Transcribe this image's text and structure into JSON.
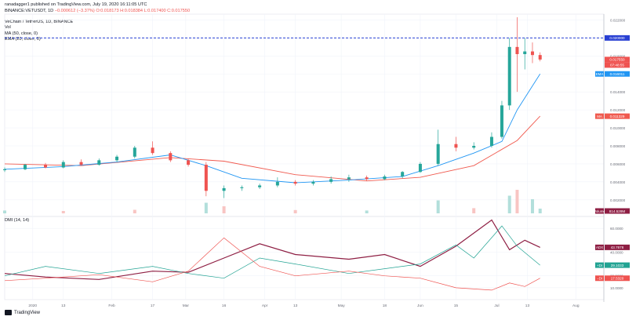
{
  "header": {
    "publish_line": "ranadagger1 published on TradingView.com, July 19, 2020 16:11:05 UTC",
    "symbol_line_prefix": "BINANCE:VETUSDT, 1D",
    "change_text": "−0.000612 (−3.37%)",
    "ohlc_text": "O:0.018173 H:0.018384 L:0.017400 C:0.017550",
    "title_line": "VeChain / TetherUS, 1D, BINANCE",
    "vol_label": "Vol",
    "ma_label": "MA (50, close, 0)",
    "ema_label": "EMA (20, close, 0)",
    "dmi_label": "DMI (14, 14)"
  },
  "footer": {
    "brand": "TradingView"
  },
  "colors": {
    "up": "#26a69a",
    "down": "#ef5350",
    "ema": "#2196f3",
    "ma": "#f05a4f",
    "adx": "#8e1e43",
    "plus_di": "#22a393",
    "minus_di": "#ef5350",
    "resistance": "#2940d3",
    "vol_up": "#b2dfdb",
    "vol_down": "#f8c5c3"
  },
  "chart_data": [
    {
      "type": "candlestick",
      "title": "VeChain / TetherUS, 1D, BINANCE",
      "y_axis_ticks": [
        "0.022000",
        "0.020000",
        "0.018000",
        "0.016000",
        "0.014000",
        "0.012000",
        "0.010000",
        "0.008000",
        "0.006000",
        "0.004000",
        "0.002000"
      ],
      "ylim": [
        0.0005,
        0.0223
      ],
      "x_axis_ticks": [
        {
          "label": "2020",
          "date": "2020-01-01"
        },
        {
          "label": "13",
          "date": "2020-01-13"
        },
        {
          "label": "Feb",
          "date": "2020-02-01"
        },
        {
          "label": "17",
          "date": "2020-02-17"
        },
        {
          "label": "Mar",
          "date": "2020-03-01"
        },
        {
          "label": "16",
          "date": "2020-03-16"
        },
        {
          "label": "Apr",
          "date": "2020-04-01"
        },
        {
          "label": "13",
          "date": "2020-04-13"
        },
        {
          "label": "May",
          "date": "2020-05-01"
        },
        {
          "label": "18",
          "date": "2020-05-18"
        },
        {
          "label": "Jun",
          "date": "2020-06-01"
        },
        {
          "label": "15",
          "date": "2020-06-15"
        },
        {
          "label": "Jul",
          "date": "2020-07-01"
        },
        {
          "label": "13",
          "date": "2020-07-13"
        },
        {
          "label": "Aug",
          "date": "2020-08-01"
        }
      ],
      "xlim": [
        "2019-12-21",
        "2020-08-12"
      ],
      "resistance_level": 0.02,
      "price_labels": {
        "resistance": "0.020000",
        "last": "0.017550",
        "countdown": "07:48:55",
        "ema_value": "0.016011",
        "ma_value": "0.011329",
        "volume_value": "814.528M"
      },
      "series_labels": {
        "ema": "EMA",
        "ma": "MA",
        "volume": "Volume"
      },
      "candles": [
        {
          "date": "2019-12-21",
          "o": 0.0053,
          "h": 0.0056,
          "l": 0.0051,
          "c": 0.0054
        },
        {
          "date": "2019-12-29",
          "o": 0.0054,
          "h": 0.006,
          "l": 0.0053,
          "c": 0.0059
        },
        {
          "date": "2020-01-06",
          "o": 0.0059,
          "h": 0.0061,
          "l": 0.0055,
          "c": 0.0056
        },
        {
          "date": "2020-01-13",
          "o": 0.0056,
          "h": 0.0064,
          "l": 0.0055,
          "c": 0.0062
        },
        {
          "date": "2020-01-20",
          "o": 0.0062,
          "h": 0.0065,
          "l": 0.0058,
          "c": 0.0059
        },
        {
          "date": "2020-01-27",
          "o": 0.0059,
          "h": 0.0066,
          "l": 0.0058,
          "c": 0.0064
        },
        {
          "date": "2020-02-03",
          "o": 0.0064,
          "h": 0.007,
          "l": 0.0062,
          "c": 0.0068
        },
        {
          "date": "2020-02-10",
          "o": 0.0068,
          "h": 0.008,
          "l": 0.0066,
          "c": 0.0078
        },
        {
          "date": "2020-02-17",
          "o": 0.0078,
          "h": 0.0085,
          "l": 0.007,
          "c": 0.0072
        },
        {
          "date": "2020-02-24",
          "o": 0.0072,
          "h": 0.0074,
          "l": 0.0062,
          "c": 0.0064
        },
        {
          "date": "2020-03-02",
          "o": 0.0064,
          "h": 0.0066,
          "l": 0.0057,
          "c": 0.0059
        },
        {
          "date": "2020-03-09",
          "o": 0.0059,
          "h": 0.0062,
          "l": 0.0024,
          "c": 0.003
        },
        {
          "date": "2020-03-16",
          "o": 0.003,
          "h": 0.0036,
          "l": 0.0022,
          "c": 0.0033
        },
        {
          "date": "2020-03-23",
          "o": 0.0033,
          "h": 0.0036,
          "l": 0.003,
          "c": 0.0034
        },
        {
          "date": "2020-03-30",
          "o": 0.0034,
          "h": 0.0038,
          "l": 0.0032,
          "c": 0.0036
        },
        {
          "date": "2020-04-06",
          "o": 0.0036,
          "h": 0.0045,
          "l": 0.0034,
          "c": 0.004
        },
        {
          "date": "2020-04-13",
          "o": 0.004,
          "h": 0.0042,
          "l": 0.0036,
          "c": 0.0038
        },
        {
          "date": "2020-04-20",
          "o": 0.0038,
          "h": 0.0042,
          "l": 0.0036,
          "c": 0.004
        },
        {
          "date": "2020-04-27",
          "o": 0.004,
          "h": 0.0046,
          "l": 0.0038,
          "c": 0.0043
        },
        {
          "date": "2020-05-04",
          "o": 0.0043,
          "h": 0.0048,
          "l": 0.004,
          "c": 0.0045
        },
        {
          "date": "2020-05-11",
          "o": 0.0045,
          "h": 0.0047,
          "l": 0.0041,
          "c": 0.0043
        },
        {
          "date": "2020-05-18",
          "o": 0.0043,
          "h": 0.0048,
          "l": 0.0042,
          "c": 0.0046
        },
        {
          "date": "2020-05-25",
          "o": 0.0046,
          "h": 0.0052,
          "l": 0.0044,
          "c": 0.0051
        },
        {
          "date": "2020-06-01",
          "o": 0.0051,
          "h": 0.0062,
          "l": 0.005,
          "c": 0.006
        },
        {
          "date": "2020-06-08",
          "o": 0.006,
          "h": 0.0098,
          "l": 0.0058,
          "c": 0.0082
        },
        {
          "date": "2020-06-15",
          "o": 0.0082,
          "h": 0.009,
          "l": 0.0074,
          "c": 0.0078
        },
        {
          "date": "2020-06-22",
          "o": 0.0078,
          "h": 0.0084,
          "l": 0.0076,
          "c": 0.008
        },
        {
          "date": "2020-06-29",
          "o": 0.008,
          "h": 0.0095,
          "l": 0.0078,
          "c": 0.009
        },
        {
          "date": "2020-07-03",
          "o": 0.009,
          "h": 0.013,
          "l": 0.0088,
          "c": 0.0125
        },
        {
          "date": "2020-07-06",
          "o": 0.0125,
          "h": 0.02,
          "l": 0.012,
          "c": 0.019
        },
        {
          "date": "2020-07-09",
          "o": 0.019,
          "h": 0.0223,
          "l": 0.014,
          "c": 0.0182
        },
        {
          "date": "2020-07-12",
          "o": 0.0182,
          "h": 0.02,
          "l": 0.0165,
          "c": 0.0185
        },
        {
          "date": "2020-07-15",
          "o": 0.0185,
          "h": 0.0195,
          "l": 0.0172,
          "c": 0.0181
        },
        {
          "date": "2020-07-18",
          "o": 0.0181,
          "h": 0.0184,
          "l": 0.0174,
          "c": 0.0176
        }
      ],
      "ema20": [
        {
          "date": "2019-12-21",
          "v": 0.0054
        },
        {
          "date": "2020-01-13",
          "v": 0.0057
        },
        {
          "date": "2020-02-03",
          "v": 0.0062
        },
        {
          "date": "2020-02-24",
          "v": 0.007
        },
        {
          "date": "2020-03-09",
          "v": 0.0058
        },
        {
          "date": "2020-03-23",
          "v": 0.0044
        },
        {
          "date": "2020-04-13",
          "v": 0.0039
        },
        {
          "date": "2020-05-04",
          "v": 0.0042
        },
        {
          "date": "2020-05-25",
          "v": 0.0046
        },
        {
          "date": "2020-06-08",
          "v": 0.0058
        },
        {
          "date": "2020-06-22",
          "v": 0.0072
        },
        {
          "date": "2020-07-03",
          "v": 0.0085
        },
        {
          "date": "2020-07-09",
          "v": 0.012
        },
        {
          "date": "2020-07-18",
          "v": 0.016
        }
      ],
      "ma50": [
        {
          "date": "2019-12-21",
          "v": 0.006
        },
        {
          "date": "2020-01-20",
          "v": 0.0058
        },
        {
          "date": "2020-02-24",
          "v": 0.0067
        },
        {
          "date": "2020-03-16",
          "v": 0.0063
        },
        {
          "date": "2020-04-13",
          "v": 0.0048
        },
        {
          "date": "2020-05-11",
          "v": 0.0041
        },
        {
          "date": "2020-06-01",
          "v": 0.0045
        },
        {
          "date": "2020-06-22",
          "v": 0.0058
        },
        {
          "date": "2020-07-09",
          "v": 0.0086
        },
        {
          "date": "2020-07-18",
          "v": 0.0113
        }
      ],
      "volume_relative": [
        {
          "date": "2019-12-21",
          "v": 0.12
        },
        {
          "date": "2020-01-13",
          "v": 0.1
        },
        {
          "date": "2020-02-10",
          "v": 0.15
        },
        {
          "date": "2020-03-09",
          "v": 0.45
        },
        {
          "date": "2020-03-16",
          "v": 0.3
        },
        {
          "date": "2020-04-13",
          "v": 0.14
        },
        {
          "date": "2020-05-11",
          "v": 0.12
        },
        {
          "date": "2020-06-08",
          "v": 0.55
        },
        {
          "date": "2020-06-22",
          "v": 0.22
        },
        {
          "date": "2020-07-06",
          "v": 0.75
        },
        {
          "date": "2020-07-09",
          "v": 1.0
        },
        {
          "date": "2020-07-15",
          "v": 0.6
        },
        {
          "date": "2020-07-18",
          "v": 0.2
        }
      ]
    },
    {
      "type": "line",
      "title": "DMI (14, 14)",
      "y_axis_ticks": [
        "60.0000",
        "40.0000",
        "20.0000",
        "10.0000"
      ],
      "ylim": [
        0,
        70
      ],
      "value_labels": {
        "adx": "43.7678",
        "plus_di": "29.1033",
        "minus_di": "17.5320"
      },
      "series_labels": {
        "adx": "ADX",
        "plus_di": "+DI",
        "minus_di": "−DI"
      },
      "series": [
        {
          "key": "adx",
          "values": [
            {
              "date": "2019-12-21",
              "v": 22
            },
            {
              "date": "2020-01-06",
              "v": 19
            },
            {
              "date": "2020-01-27",
              "v": 17
            },
            {
              "date": "2020-02-17",
              "v": 24
            },
            {
              "date": "2020-03-02",
              "v": 23
            },
            {
              "date": "2020-03-16",
              "v": 35
            },
            {
              "date": "2020-03-30",
              "v": 47
            },
            {
              "date": "2020-04-13",
              "v": 38
            },
            {
              "date": "2020-05-04",
              "v": 34
            },
            {
              "date": "2020-05-18",
              "v": 38
            },
            {
              "date": "2020-06-01",
              "v": 28
            },
            {
              "date": "2020-06-15",
              "v": 45
            },
            {
              "date": "2020-06-29",
              "v": 67
            },
            {
              "date": "2020-07-06",
              "v": 42
            },
            {
              "date": "2020-07-12",
              "v": 50
            },
            {
              "date": "2020-07-18",
              "v": 44
            }
          ]
        },
        {
          "key": "plus_di",
          "values": [
            {
              "date": "2019-12-21",
              "v": 20
            },
            {
              "date": "2020-01-06",
              "v": 28
            },
            {
              "date": "2020-01-27",
              "v": 22
            },
            {
              "date": "2020-02-17",
              "v": 28
            },
            {
              "date": "2020-03-02",
              "v": 22
            },
            {
              "date": "2020-03-16",
              "v": 18
            },
            {
              "date": "2020-03-30",
              "v": 35
            },
            {
              "date": "2020-04-13",
              "v": 30
            },
            {
              "date": "2020-05-04",
              "v": 22
            },
            {
              "date": "2020-05-18",
              "v": 26
            },
            {
              "date": "2020-06-01",
              "v": 30
            },
            {
              "date": "2020-06-15",
              "v": 46
            },
            {
              "date": "2020-06-22",
              "v": 35
            },
            {
              "date": "2020-07-03",
              "v": 62
            },
            {
              "date": "2020-07-09",
              "v": 45
            },
            {
              "date": "2020-07-18",
              "v": 29
            }
          ]
        },
        {
          "key": "minus_di",
          "values": [
            {
              "date": "2019-12-21",
              "v": 16
            },
            {
              "date": "2020-01-06",
              "v": 18
            },
            {
              "date": "2020-01-27",
              "v": 21
            },
            {
              "date": "2020-02-17",
              "v": 15
            },
            {
              "date": "2020-03-02",
              "v": 24
            },
            {
              "date": "2020-03-16",
              "v": 52
            },
            {
              "date": "2020-03-30",
              "v": 28
            },
            {
              "date": "2020-04-13",
              "v": 20
            },
            {
              "date": "2020-05-04",
              "v": 24
            },
            {
              "date": "2020-05-18",
              "v": 20
            },
            {
              "date": "2020-06-01",
              "v": 18
            },
            {
              "date": "2020-06-15",
              "v": 10
            },
            {
              "date": "2020-06-29",
              "v": 8
            },
            {
              "date": "2020-07-06",
              "v": 14
            },
            {
              "date": "2020-07-12",
              "v": 11
            },
            {
              "date": "2020-07-18",
              "v": 18
            }
          ]
        }
      ]
    }
  ]
}
